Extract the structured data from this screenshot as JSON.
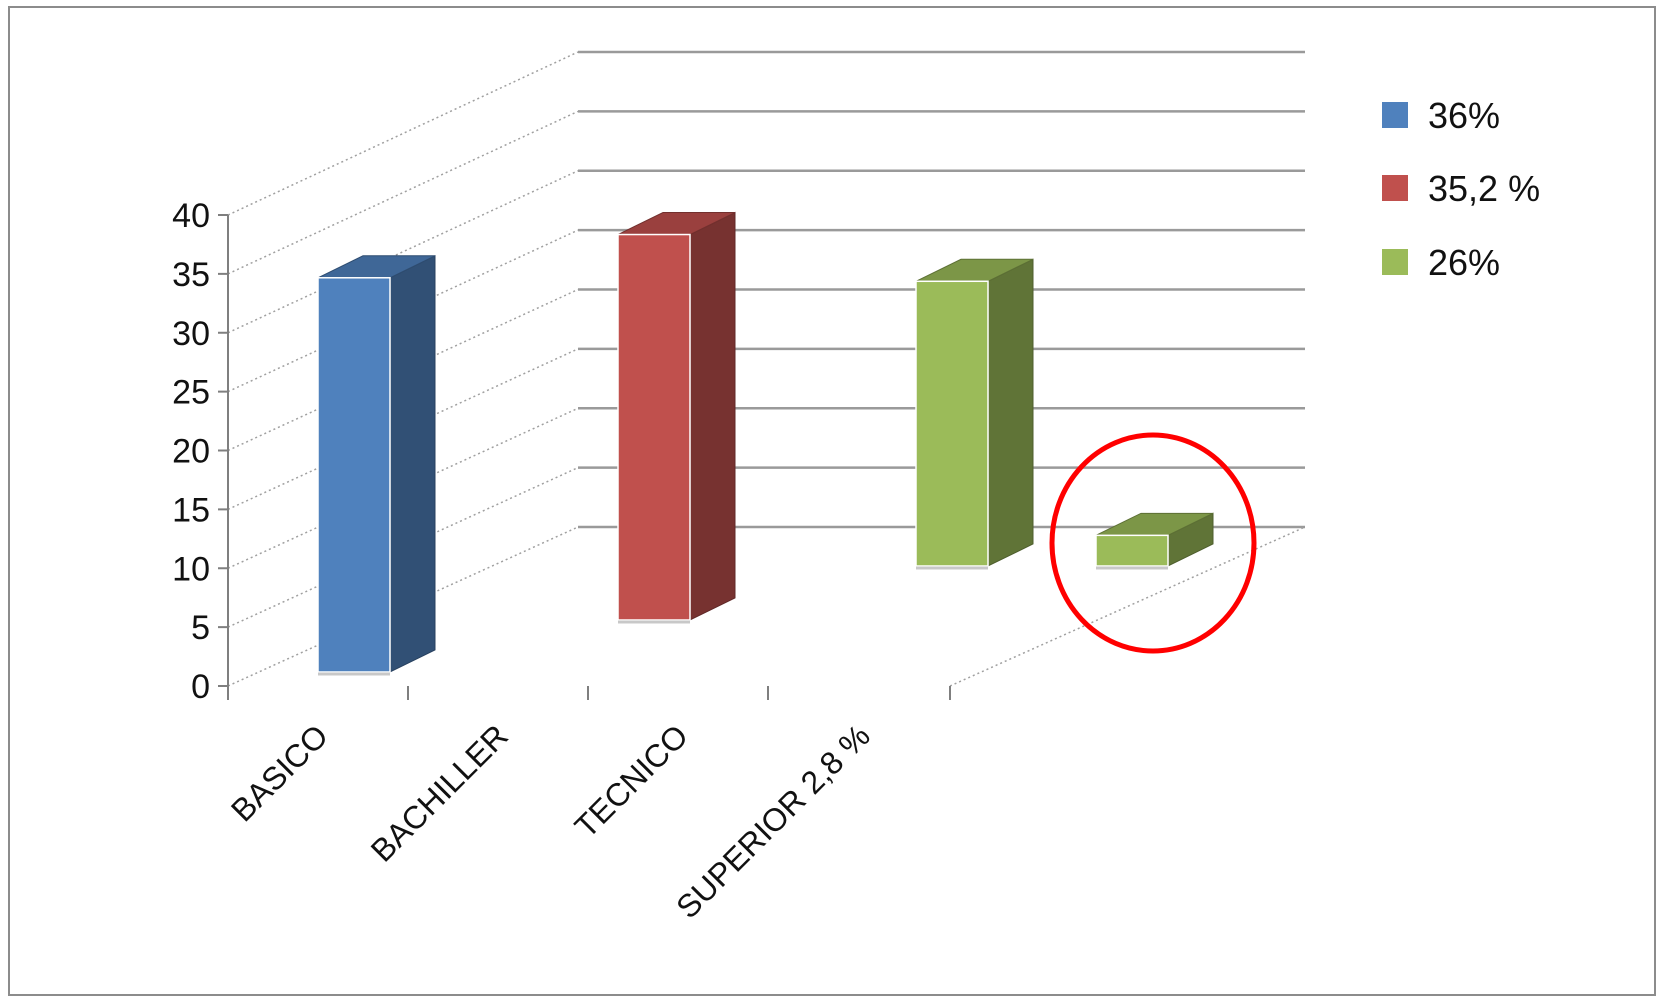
{
  "chart_data": {
    "type": "bar",
    "style": "3d-column",
    "categories": [
      "BASICO",
      "BACHILLER",
      "TECNICO",
      "SUPERIOR 2,8 %"
    ],
    "series": [
      {
        "name": "36%",
        "values": [
          36,
          null,
          null,
          null
        ],
        "color": "#4f81bd"
      },
      {
        "name": "35,2 %",
        "values": [
          null,
          35.2,
          null,
          null
        ],
        "color": "#c0504d"
      },
      {
        "name": "26%",
        "values": [
          null,
          null,
          26,
          2.8
        ],
        "color": "#9bbb59"
      }
    ],
    "yticks": [
      "0",
      "5",
      "10",
      "15",
      "20",
      "25",
      "30",
      "35",
      "40"
    ],
    "ylim": [
      0,
      40
    ],
    "grid": true,
    "legend_position": "right",
    "annotation": {
      "type": "circle",
      "target": "SUPERIOR 2,8 %",
      "color": "#ff0000"
    }
  }
}
